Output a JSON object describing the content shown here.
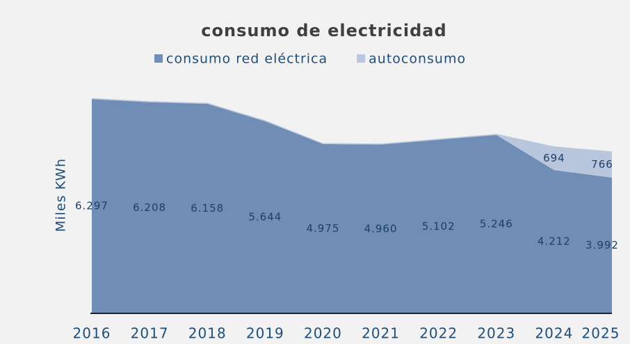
{
  "chart_data": {
    "type": "stacked_area",
    "title": "consumo de electricidad",
    "y_label": "Miles KWh",
    "categories": [
      "2016",
      "2017",
      "2018",
      "2019",
      "2020",
      "2021",
      "2022",
      "2023",
      "2024",
      "2025"
    ],
    "series": [
      {
        "name": "consumo red eléctrica",
        "color": "#6f8db5",
        "values": [
          6297,
          6208,
          6158,
          5644,
          4975,
          4960,
          5102,
          5246,
          4212,
          3992
        ],
        "value_labels": [
          "6.297",
          "6.208",
          "6.158",
          "5.644",
          "4.975",
          "4.960",
          "5.102",
          "5.246",
          "4.212",
          "3.992"
        ]
      },
      {
        "name": "autoconsumo",
        "color": "#b9c7de",
        "values": [
          30,
          30,
          30,
          30,
          30,
          30,
          30,
          30,
          694,
          766
        ],
        "value_labels": [
          null,
          null,
          null,
          null,
          null,
          null,
          null,
          null,
          "694",
          "766"
        ]
      }
    ],
    "ylim": [
      0,
      7000
    ],
    "legend": "top"
  }
}
